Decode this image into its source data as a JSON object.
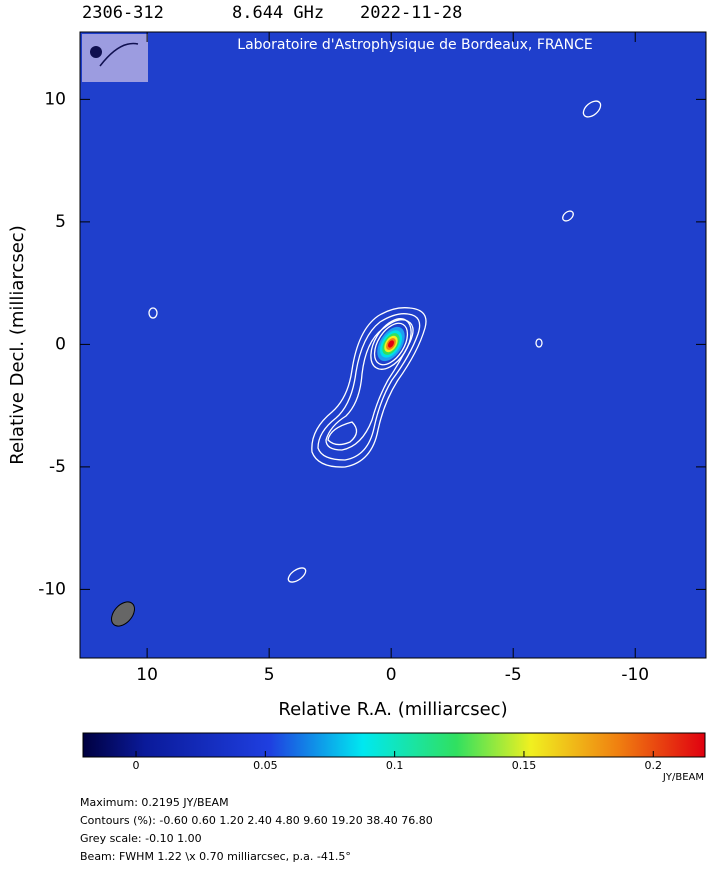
{
  "chart_data": {
    "type": "image",
    "header": [
      "2306-312",
      "8.644 GHz",
      "2022-11-28"
    ],
    "banner": "Laboratoire d'Astrophysique de Bordeaux, FRANCE",
    "x_label": "Relative R.A. (milliarcsec)",
    "y_label": "Relative Decl. (milliarcsec)",
    "xlim": [
      12.75,
      -12.9
    ],
    "xticks": [
      10,
      5,
      0,
      -5,
      -10
    ],
    "ylim": [
      -12.8,
      12.75
    ],
    "yticks": [
      10,
      5,
      0,
      -5,
      -10
    ],
    "colorbar": {
      "lim": [
        -0.0205,
        0.22
      ],
      "ticks": [
        0,
        0.05,
        0.1,
        0.15,
        0.2
      ],
      "unit": "JY/BEAM"
    },
    "notes": [
      "Maximum: 0.2195 JY/BEAM",
      "Contours (%): -0.60 0.60 1.20 2.40 4.80 9.60 19.20 38.40 76.80",
      "Grey scale: -0.10 1.00",
      "Beam: FWHM 1.22 \\x 0.70 milliarcsec, p.a. -41.5°"
    ]
  }
}
